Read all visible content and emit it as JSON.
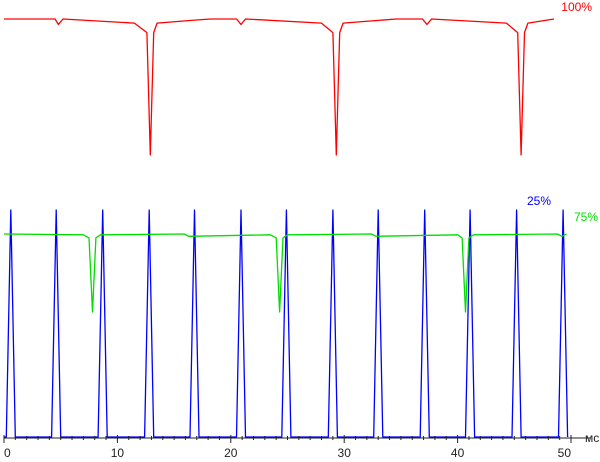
{
  "chart_data": {
    "type": "line",
    "xlabel": "мс",
    "xlim": [
      0,
      50
    ],
    "x_ticks": [
      "0",
      "10",
      "20",
      "30",
      "40",
      "50"
    ],
    "grid": false,
    "series": [
      {
        "name": "100%",
        "color": "#ff0000",
        "pattern": "flat trace with a deep narrow downward spike every ~16.6 ms",
        "spike_times": [
          12.9,
          29.3,
          45.6
        ],
        "x": [
          0,
          4.5,
          4.8,
          5.2,
          11.5,
          12.6,
          12.9,
          13.2,
          13.5,
          16.5,
          18.2,
          20.5,
          20.9,
          21.3,
          28.0,
          29.0,
          29.3,
          29.6,
          29.9,
          33.0,
          34.6,
          36.9,
          37.3,
          37.7,
          44.3,
          45.3,
          45.6,
          45.9,
          46.2,
          48.5
        ],
        "y": [
          1.0,
          1.0,
          0.96,
          1.0,
          0.97,
          0.9,
          0.0,
          0.9,
          0.97,
          0.99,
          1.0,
          1.0,
          0.96,
          1.0,
          0.97,
          0.9,
          0.0,
          0.9,
          0.97,
          0.99,
          1.0,
          1.0,
          0.96,
          1.0,
          0.97,
          0.9,
          0.0,
          0.9,
          0.97,
          1.0
        ]
      },
      {
        "name": "75%",
        "color": "#00dd00",
        "pattern": "flat trace with a moderate downward dip every ~16.6 ms",
        "dip_times": [
          7.8,
          24.3,
          40.7
        ],
        "x": [
          0,
          7.0,
          7.5,
          7.8,
          8.1,
          8.5,
          15.9,
          16.3,
          23.5,
          24.0,
          24.3,
          24.6,
          25.0,
          32.4,
          32.8,
          40.0,
          40.4,
          40.7,
          41.0,
          41.4,
          48.8,
          49.2,
          49.6
        ],
        "y": [
          1.0,
          0.99,
          0.95,
          0.0,
          0.95,
          0.99,
          1.0,
          0.97,
          0.99,
          0.95,
          0.0,
          0.95,
          0.99,
          1.0,
          0.97,
          0.99,
          0.95,
          0.0,
          0.95,
          0.99,
          1.0,
          0.97,
          1.0
        ]
      },
      {
        "name": "25%",
        "color": "#0000ff",
        "pattern": "rectangular pulses roughly every 4.1 ms",
        "pulse_times": [
          0.6,
          4.6,
          8.7,
          12.8,
          16.8,
          20.9,
          24.9,
          29.0,
          33.0,
          37.1,
          41.1,
          45.2,
          49.3
        ],
        "x": [
          0,
          0.2,
          0.6,
          1.0,
          4.2,
          4.6,
          5.0,
          8.3,
          8.7,
          9.1,
          12.4,
          12.8,
          13.2,
          16.4,
          16.8,
          17.2,
          20.5,
          20.9,
          21.3,
          24.5,
          24.9,
          25.3,
          28.6,
          29.0,
          29.4,
          32.6,
          33.0,
          33.4,
          36.7,
          37.1,
          37.5,
          40.7,
          41.1,
          41.5,
          44.8,
          45.2,
          45.6,
          48.9,
          49.3,
          49.7
        ],
        "y": [
          0,
          0,
          1,
          0,
          0,
          1,
          0,
          0,
          1,
          0,
          0,
          1,
          0,
          0,
          1,
          0,
          0,
          1,
          0,
          0,
          1,
          0,
          0,
          1,
          0,
          0,
          1,
          0,
          0,
          1,
          0,
          0,
          1,
          0,
          0,
          1,
          0,
          0,
          1,
          0
        ]
      }
    ]
  }
}
